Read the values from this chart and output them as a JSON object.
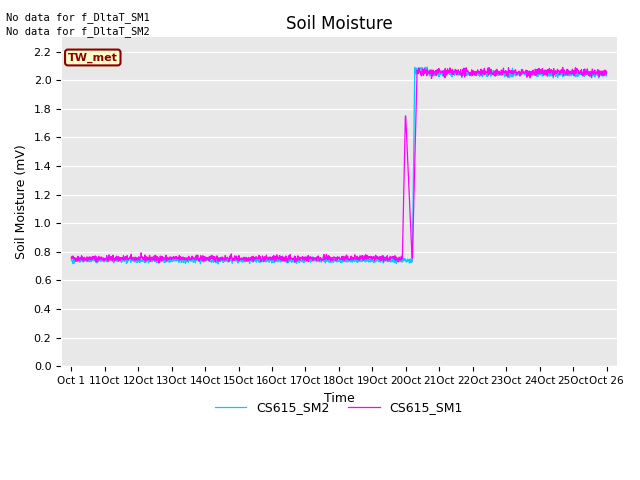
{
  "title": "Soil Moisture",
  "xlabel": "Time",
  "ylabel": "Soil Moisture (mV)",
  "ylim": [
    0.0,
    2.3
  ],
  "yticks": [
    0.0,
    0.2,
    0.4,
    0.6,
    0.8,
    1.0,
    1.2,
    1.4,
    1.6,
    1.8,
    2.0,
    2.2
  ],
  "xtick_positions": [
    0,
    1,
    2,
    3,
    4,
    5,
    6,
    7,
    8,
    9,
    10,
    11,
    12,
    13,
    14,
    15,
    16
  ],
  "xtick_labels": [
    "Oct 1",
    "11Oct",
    "12Oct",
    "13Oct",
    "14Oct",
    "15Oct",
    "16Oct",
    "17Oct",
    "18Oct",
    "19Oct",
    "20Oct",
    "21Oct",
    "22Oct",
    "23Oct",
    "24Oct",
    "25Oct",
    "Oct 26"
  ],
  "color_sm1": "#FF00FF",
  "color_sm2": "#00CCFF",
  "background_color": "#E8E8E8",
  "annotation1": "No data for f_DltaT_SM1",
  "annotation2": "No data for f_DltaT_SM2",
  "tw_met_label": "TW_met",
  "legend_sm1": "CS615_SM1",
  "legend_sm2": "CS615_SM2",
  "figsize": [
    6.4,
    4.8
  ],
  "dpi": 100
}
